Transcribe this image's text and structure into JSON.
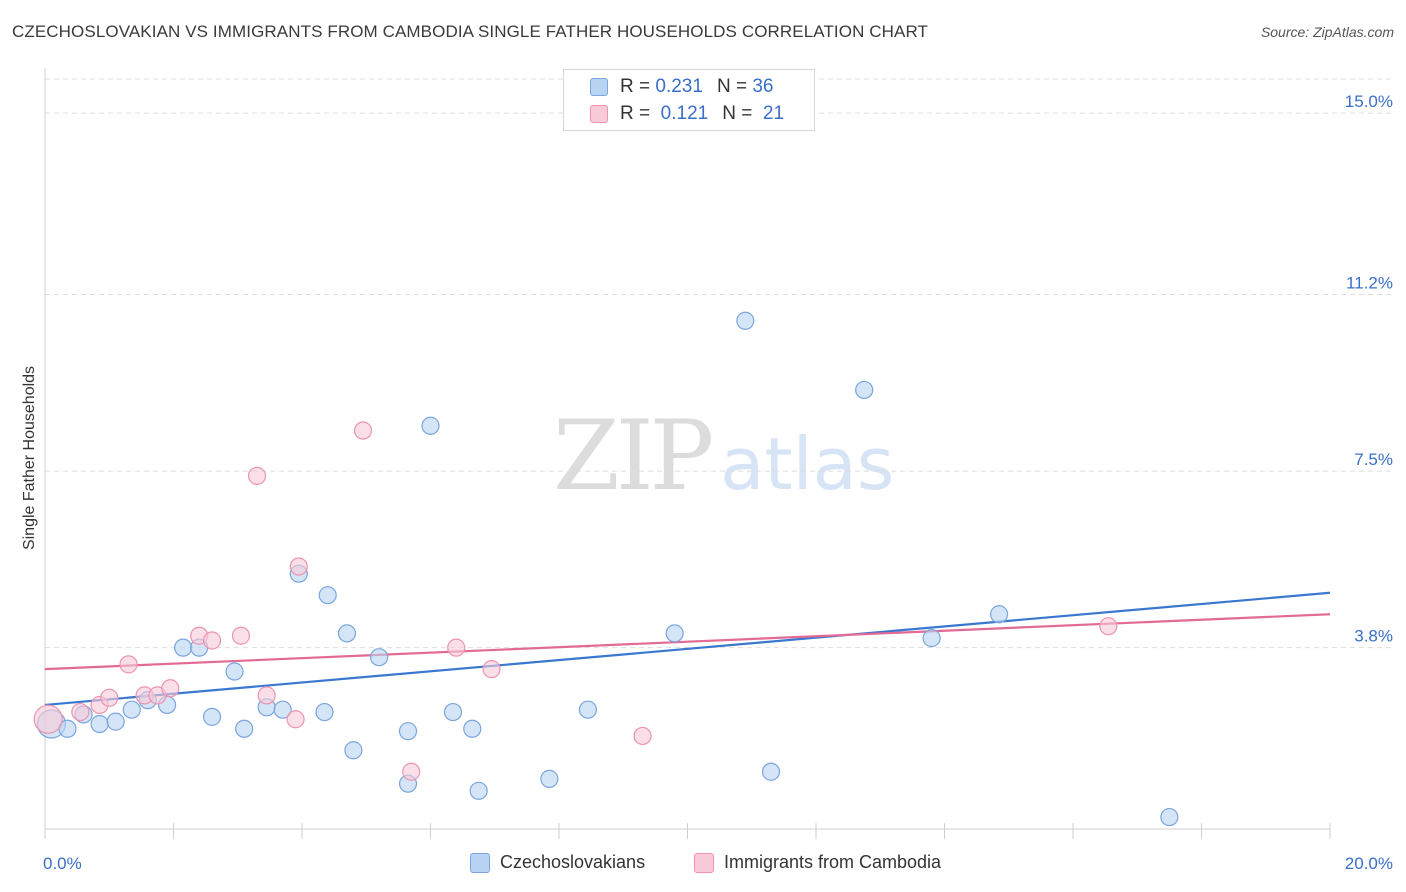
{
  "header": {
    "title": "CZECHOSLOVAKIAN VS IMMIGRANTS FROM CAMBODIA SINGLE FATHER HOUSEHOLDS CORRELATION CHART",
    "source": "Source: ZipAtlas.com"
  },
  "watermark": {
    "zip": "ZIP",
    "atlas": "atlas"
  },
  "legend": {
    "r_label": "R =",
    "n_label": "N =",
    "rows": [
      {
        "r": "0.231",
        "n": "36"
      },
      {
        "r": "0.121",
        "n": "21"
      }
    ]
  },
  "bottom_legend": {
    "czech": "Czechoslovakians",
    "cambodia": "Immigrants from Cambodia"
  },
  "colors": {
    "czech_fill": "#b9d3f3",
    "czech_stroke": "#7aa6dd",
    "czech_line": "#3a78d0",
    "cambodia_fill": "#f9cad8",
    "cambodia_stroke": "#ec94b1",
    "cambodia_line": "#e36a94",
    "tick_label": "#3a6fc9",
    "grid": "#dddddd"
  },
  "chart_data": {
    "type": "scatter",
    "title": "CZECHOSLOVAKIAN VS IMMIGRANTS FROM CAMBODIA SINGLE FATHER HOUSEHOLDS CORRELATION CHART",
    "xlabel": "",
    "ylabel": "Single Father Households",
    "xlim": [
      0,
      20
    ],
    "ylim": [
      0,
      15.8
    ],
    "x_ticks": [
      {
        "value": 0,
        "label": "0.0%"
      },
      {
        "value": 20,
        "label": "20.0%"
      }
    ],
    "y_ticks": [
      {
        "value": 3.8,
        "label": "3.8%"
      },
      {
        "value": 7.5,
        "label": "7.5%"
      },
      {
        "value": 11.2,
        "label": "11.2%"
      },
      {
        "value": 15.0,
        "label": "15.0%"
      }
    ],
    "grid": true,
    "legend_position": "top-center",
    "series": [
      {
        "name": "Czechoslovakians",
        "points": [
          [
            0.1,
            2.2
          ],
          [
            0.35,
            2.1
          ],
          [
            0.6,
            2.4
          ],
          [
            0.85,
            2.2
          ],
          [
            1.1,
            2.25
          ],
          [
            1.35,
            2.5
          ],
          [
            1.6,
            2.7
          ],
          [
            1.9,
            2.6
          ],
          [
            2.15,
            3.8
          ],
          [
            2.4,
            3.8
          ],
          [
            2.6,
            2.35
          ],
          [
            2.95,
            3.3
          ],
          [
            3.1,
            2.1
          ],
          [
            3.45,
            2.55
          ],
          [
            3.7,
            2.5
          ],
          [
            3.95,
            5.35
          ],
          [
            4.35,
            2.45
          ],
          [
            4.4,
            4.9
          ],
          [
            4.7,
            4.1
          ],
          [
            4.8,
            1.65
          ],
          [
            5.2,
            3.6
          ],
          [
            5.65,
            2.05
          ],
          [
            5.65,
            0.95
          ],
          [
            6.0,
            8.45
          ],
          [
            6.35,
            2.45
          ],
          [
            6.65,
            2.1
          ],
          [
            6.75,
            0.8
          ],
          [
            7.85,
            1.05
          ],
          [
            8.45,
            2.5
          ],
          [
            9.8,
            4.1
          ],
          [
            10.9,
            10.65
          ],
          [
            11.3,
            1.2
          ],
          [
            12.75,
            9.2
          ],
          [
            13.8,
            4.0
          ],
          [
            14.85,
            4.5
          ],
          [
            17.5,
            0.25
          ]
        ],
        "trend": [
          [
            0,
            2.6
          ],
          [
            20,
            4.95
          ]
        ]
      },
      {
        "name": "Immigrants from Cambodia",
        "points": [
          [
            0.05,
            2.3
          ],
          [
            0.55,
            2.45
          ],
          [
            0.85,
            2.6
          ],
          [
            1.0,
            2.75
          ],
          [
            1.3,
            3.45
          ],
          [
            1.55,
            2.8
          ],
          [
            1.75,
            2.8
          ],
          [
            1.95,
            2.95
          ],
          [
            2.4,
            4.05
          ],
          [
            2.6,
            3.95
          ],
          [
            3.05,
            4.05
          ],
          [
            3.3,
            7.4
          ],
          [
            3.45,
            2.8
          ],
          [
            3.9,
            2.3
          ],
          [
            3.95,
            5.5
          ],
          [
            4.95,
            8.35
          ],
          [
            5.7,
            1.2
          ],
          [
            6.4,
            3.8
          ],
          [
            6.95,
            3.35
          ],
          [
            9.3,
            1.95
          ],
          [
            16.55,
            4.25
          ]
        ],
        "trend": [
          [
            0,
            3.35
          ],
          [
            20,
            4.5
          ]
        ]
      }
    ]
  }
}
